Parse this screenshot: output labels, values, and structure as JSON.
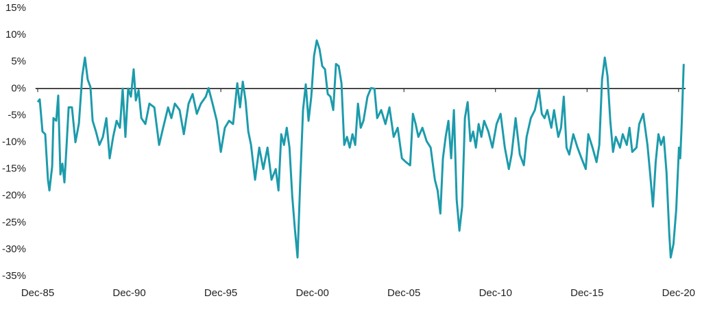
{
  "chart_data": {
    "type": "line",
    "color": "#1c9bab",
    "grid": false,
    "xlim": [
      1985.8,
      2021.3
    ],
    "xticks": [
      {
        "value": 1985.92,
        "label": "Dec-85"
      },
      {
        "value": 1990.92,
        "label": "Dec-90"
      },
      {
        "value": 1995.92,
        "label": "Dec-95"
      },
      {
        "value": 2000.92,
        "label": "Dec-00"
      },
      {
        "value": 2005.92,
        "label": "Dec-05"
      },
      {
        "value": 2010.92,
        "label": "Dec-10"
      },
      {
        "value": 2015.92,
        "label": "Dec-15"
      },
      {
        "value": 2020.92,
        "label": "Dec-20"
      }
    ],
    "ylim": [
      -35,
      15
    ],
    "yticks": [
      {
        "value": 15,
        "label": "15%"
      },
      {
        "value": 10,
        "label": "10%"
      },
      {
        "value": 5,
        "label": "5%"
      },
      {
        "value": 0,
        "label": "0%"
      },
      {
        "value": -5,
        "label": "-5%"
      },
      {
        "value": -10,
        "label": "-10%"
      },
      {
        "value": -15,
        "label": "-15%"
      },
      {
        "value": -20,
        "label": "-20%"
      },
      {
        "value": -25,
        "label": "-25%"
      },
      {
        "value": -30,
        "label": "-30%"
      },
      {
        "value": -35,
        "label": "-35%"
      }
    ],
    "x": [
      1985.92,
      1986.03,
      1986.18,
      1986.33,
      1986.48,
      1986.56,
      1986.71,
      1986.78,
      1986.93,
      1987.04,
      1987.16,
      1987.27,
      1987.38,
      1987.49,
      1987.61,
      1987.79,
      1987.98,
      1988.17,
      1988.35,
      1988.5,
      1988.65,
      1988.8,
      1988.92,
      1989.1,
      1989.29,
      1989.48,
      1989.67,
      1989.85,
      1990.04,
      1990.23,
      1990.41,
      1990.56,
      1990.71,
      1990.86,
      1991.01,
      1991.16,
      1991.28,
      1991.43,
      1991.58,
      1991.8,
      1992.02,
      1992.29,
      1992.55,
      1992.77,
      1993.04,
      1993.22,
      1993.41,
      1993.67,
      1993.9,
      1994.16,
      1994.38,
      1994.61,
      1994.83,
      1995.1,
      1995.25,
      1995.47,
      1995.7,
      1995.92,
      1996.14,
      1996.37,
      1996.59,
      1996.82,
      1996.97,
      1997.12,
      1997.27,
      1997.42,
      1997.57,
      1997.79,
      1998.02,
      1998.24,
      1998.47,
      1998.69,
      1998.92,
      1999.07,
      1999.22,
      1999.37,
      1999.52,
      1999.67,
      1999.82,
      1999.96,
      2000.11,
      2000.26,
      2000.41,
      2000.56,
      2000.71,
      2000.86,
      2001.01,
      2001.16,
      2001.31,
      2001.46,
      2001.61,
      2001.76,
      2001.91,
      2002.06,
      2002.21,
      2002.36,
      2002.51,
      2002.66,
      2002.81,
      2002.96,
      2003.11,
      2003.26,
      2003.41,
      2003.56,
      2003.71,
      2003.93,
      2004.12,
      2004.31,
      2004.46,
      2004.68,
      2004.91,
      2005.13,
      2005.36,
      2005.58,
      2005.81,
      2006.03,
      2006.26,
      2006.41,
      2006.56,
      2006.71,
      2006.93,
      2007.16,
      2007.38,
      2007.61,
      2007.76,
      2007.91,
      2008.05,
      2008.2,
      2008.35,
      2008.5,
      2008.65,
      2008.8,
      2008.95,
      2009.1,
      2009.25,
      2009.4,
      2009.55,
      2009.7,
      2009.85,
      2010.0,
      2010.15,
      2010.3,
      2010.53,
      2010.75,
      2010.98,
      2011.2,
      2011.43,
      2011.65,
      2011.8,
      2012.02,
      2012.25,
      2012.47,
      2012.62,
      2012.85,
      2013.07,
      2013.3,
      2013.45,
      2013.6,
      2013.75,
      2013.97,
      2014.12,
      2014.35,
      2014.5,
      2014.65,
      2014.8,
      2014.95,
      2015.17,
      2015.4,
      2015.62,
      2015.85,
      2015.99,
      2016.22,
      2016.44,
      2016.59,
      2016.74,
      2016.89,
      2017.04,
      2017.19,
      2017.34,
      2017.49,
      2017.72,
      2017.87,
      2018.09,
      2018.24,
      2018.39,
      2018.62,
      2018.77,
      2018.99,
      2019.22,
      2019.37,
      2019.52,
      2019.67,
      2019.82,
      2019.96,
      2020.11,
      2020.26,
      2020.41,
      2020.49,
      2020.64,
      2020.79,
      2020.94,
      2021.01,
      2021.09,
      2021.2
    ],
    "values": [
      -2.5,
      -2,
      -8,
      -8.5,
      -17,
      -19,
      -14.5,
      -5.5,
      -6,
      -1.3,
      -16,
      -14,
      -17.5,
      -11,
      -3.5,
      -3.5,
      -10,
      -6.5,
      2.3,
      5.8,
      1.7,
      0.3,
      -6,
      -8,
      -10.5,
      -9,
      -5.5,
      -13,
      -9,
      -6,
      -7.3,
      0,
      -9,
      0,
      -1.5,
      3.6,
      -2.2,
      -0.3,
      -5.5,
      -6.6,
      -2.8,
      -3.5,
      -10.5,
      -7.3,
      -3.5,
      -5.5,
      -2.8,
      -4,
      -8.5,
      -2.8,
      -1,
      -4.7,
      -2.8,
      -1.5,
      0.1,
      -2.8,
      -6,
      -11.8,
      -7.3,
      -6,
      -6.6,
      1,
      -3.5,
      1.3,
      -2.2,
      -8,
      -10.5,
      -17,
      -11,
      -15,
      -11,
      -17,
      -15,
      -19,
      -8.5,
      -10.5,
      -7.3,
      -11,
      -20,
      -26,
      -31.5,
      -17,
      -4,
      0.8,
      -6,
      -1.5,
      6.1,
      9,
      7.4,
      4.2,
      3.6,
      -1,
      -1.5,
      -4,
      4.6,
      4.2,
      1,
      -10.5,
      -9,
      -11,
      -8.5,
      -10.5,
      -2.8,
      -7.3,
      -6,
      -1.5,
      0.1,
      0,
      -5.5,
      -4,
      -6.6,
      -3.5,
      -9,
      -7.3,
      -13,
      -13.7,
      -14.3,
      -4.7,
      -6.6,
      -9,
      -7.3,
      -9.8,
      -11,
      -17,
      -19,
      -23.3,
      -13,
      -9,
      -6,
      -13,
      -4,
      -20.7,
      -26.5,
      -22,
      -5.5,
      -2.5,
      -9.8,
      -8,
      -11,
      -6.6,
      -9,
      -6,
      -8,
      -11,
      -6.6,
      -4.7,
      -11,
      -15,
      -12.3,
      -5.5,
      -12.3,
      -14.3,
      -9,
      -5.5,
      -4,
      -0.3,
      -4.7,
      -5.5,
      -4,
      -7.3,
      -4,
      -9,
      -7.3,
      -1.5,
      -11,
      -12.3,
      -8.5,
      -11,
      -13,
      -15,
      -8.5,
      -11,
      -13.7,
      -10.5,
      1.7,
      5.8,
      2.3,
      -6,
      -11.8,
      -9,
      -11,
      -8.5,
      -10.5,
      -7.3,
      -11.8,
      -11,
      -6.6,
      -4.7,
      -10.5,
      -16,
      -22,
      -13.7,
      -8.5,
      -10.5,
      -9,
      -15.6,
      -27,
      -31.5,
      -29,
      -22.6,
      -11,
      -13,
      -6.6,
      4.6
    ]
  }
}
